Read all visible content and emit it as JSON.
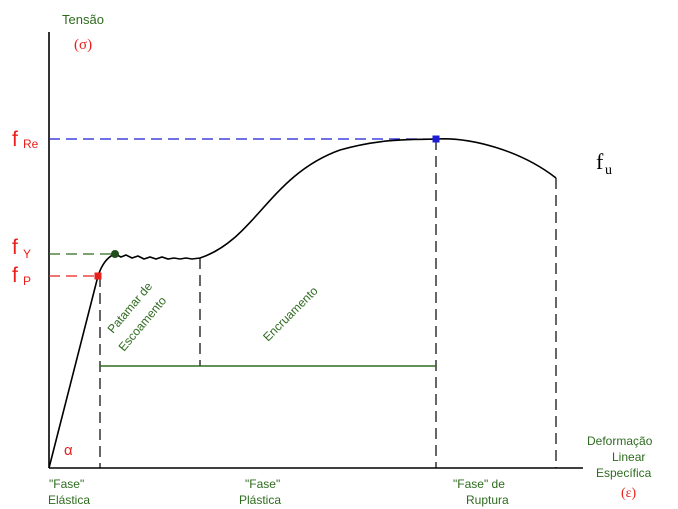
{
  "axes": {
    "y_label": "Tensão",
    "y_symbol": "(σ)",
    "x_label_line1": "Deformação",
    "x_label_line2": "Linear",
    "x_label_line3": "Específica",
    "x_symbol": "(ε)"
  },
  "levels": {
    "f_re": {
      "base": "f",
      "sub": "Re"
    },
    "f_y": {
      "base": "f",
      "sub": "Y"
    },
    "f_p": {
      "base": "f",
      "sub": "P"
    },
    "f_u": {
      "base": "f",
      "sub": "u"
    }
  },
  "angle_symbol": "α",
  "region_labels": {
    "patamar_line1": "Patamar de",
    "patamar_line2": "Escoamento",
    "encruamento": "Encruamento"
  },
  "phases": {
    "elastica_line1": "\"Fase\"",
    "elastica_line2": "Elástica",
    "plastica_line1": "\"Fase\"",
    "plastica_line2": "Plástica",
    "ruptura_line1": "\"Fase\" de",
    "ruptura_line2": "Ruptura"
  },
  "colors": {
    "red": "#e8201c",
    "green": "#2e6b1f",
    "blue": "#1c1cd8",
    "black": "#000000",
    "dark_green_point": "#1f4f1a"
  }
}
